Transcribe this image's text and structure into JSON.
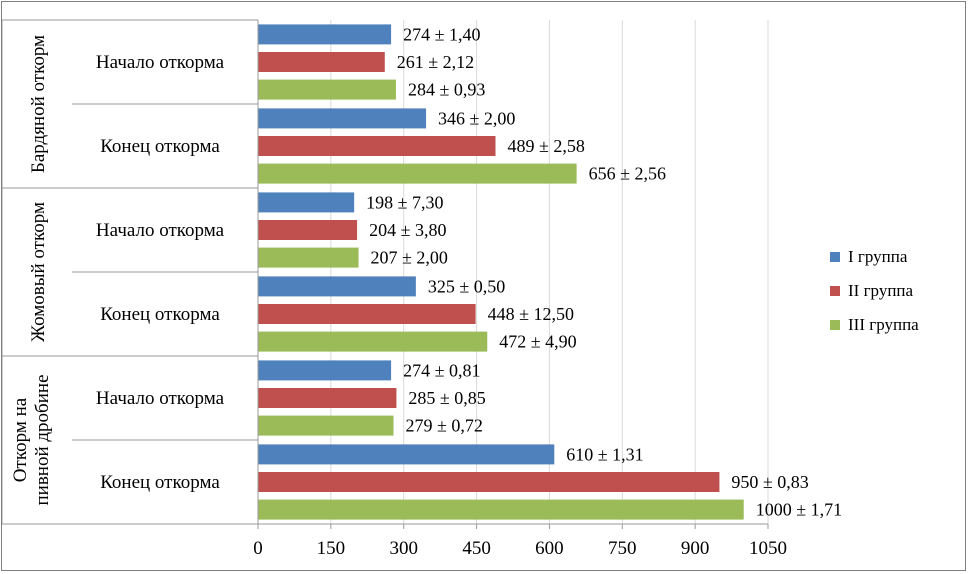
{
  "chart_data": {
    "type": "bar",
    "orientation": "horizontal",
    "groups": [
      {
        "name": "Бардяной откорм",
        "subgroups": [
          {
            "label": "Начало откорма",
            "bars": [
              {
                "value": 274,
                "label": "274 ± 1,40"
              },
              {
                "value": 261,
                "label": "261 ± 2,12"
              },
              {
                "value": 284,
                "label": "284 ± 0,93"
              }
            ]
          },
          {
            "label": "Конец откорма",
            "bars": [
              {
                "value": 346,
                "label": "346 ± 2,00"
              },
              {
                "value": 489,
                "label": "489 ± 2,58"
              },
              {
                "value": 656,
                "label": "656 ± 2,56"
              }
            ]
          }
        ]
      },
      {
        "name": "Жомовый откорм",
        "subgroups": [
          {
            "label": "Начало откорма",
            "bars": [
              {
                "value": 198,
                "label": "198 ± 7,30"
              },
              {
                "value": 204,
                "label": "204 ± 3,80"
              },
              {
                "value": 207,
                "label": "207 ± 2,00"
              }
            ]
          },
          {
            "label": "Конец откорма",
            "bars": [
              {
                "value": 325,
                "label": "325 ± 0,50"
              },
              {
                "value": 448,
                "label": "448 ± 12,50"
              },
              {
                "value": 472,
                "label": "472 ± 4,90"
              }
            ]
          }
        ]
      },
      {
        "name": "Откорм на пивной дробине",
        "name_lines": [
          "Откорм на",
          "пивной дробине"
        ],
        "subgroups": [
          {
            "label": "Начало откорма",
            "bars": [
              {
                "value": 274,
                "label": "274 ± 0,81"
              },
              {
                "value": 285,
                "label": "285 ± 0,85"
              },
              {
                "value": 279,
                "label": "279 ± 0,72"
              }
            ]
          },
          {
            "label": "Конец откорма",
            "bars": [
              {
                "value": 610,
                "label": "610 ± 1,31"
              },
              {
                "value": 950,
                "label": "950 ± 0,83"
              },
              {
                "value": 1000,
                "label": "1000 ± 1,71"
              }
            ]
          }
        ]
      }
    ],
    "series": [
      {
        "name": "I группа",
        "color": "#4f81bd"
      },
      {
        "name": "II группа",
        "color": "#c0504d"
      },
      {
        "name": "III группа",
        "color": "#9bbb59"
      }
    ],
    "xlim": [
      0,
      1050
    ],
    "xticks": [
      "0",
      "150",
      "300",
      "450",
      "600",
      "750",
      "900",
      "1050"
    ],
    "grid": true,
    "legend_position": "right"
  }
}
